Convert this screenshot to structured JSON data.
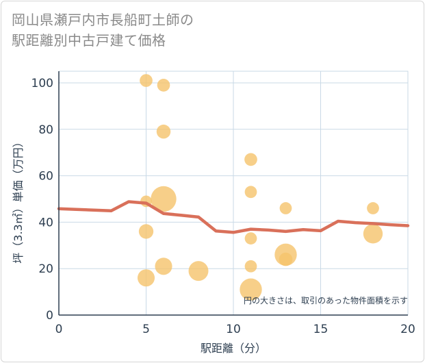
{
  "chart_data": {
    "type": "scatter",
    "title_lines": [
      "岡山県瀬戸内市長船町土師の",
      "駅距離別中古戸建て価格"
    ],
    "xlabel": "駅距離（分）",
    "ylabel": "坪（3.3㎡）単価（万円）",
    "xlim": [
      0,
      20
    ],
    "ylim": [
      0,
      105
    ],
    "x_ticks": [
      0,
      5,
      10,
      15,
      20
    ],
    "y_ticks": [
      0,
      20,
      40,
      60,
      80,
      100
    ],
    "grid": true,
    "annotation": "円の大きさは、取引のあった物件面積を示す",
    "colors": {
      "bubble": "#f5c36b",
      "line": "#d9705a",
      "grid": "#c9d9e6",
      "axis": "#2d3e50"
    },
    "points": [
      {
        "x": 5,
        "y": 101,
        "size": 1
      },
      {
        "x": 6,
        "y": 99,
        "size": 1
      },
      {
        "x": 6,
        "y": 79,
        "size": 1.2
      },
      {
        "x": 11,
        "y": 67,
        "size": 1
      },
      {
        "x": 11,
        "y": 53,
        "size": 0.9
      },
      {
        "x": 6,
        "y": 50,
        "size": 4
      },
      {
        "x": 5,
        "y": 49,
        "size": 0.8
      },
      {
        "x": 13,
        "y": 46,
        "size": 0.9
      },
      {
        "x": 18,
        "y": 46,
        "size": 0.9
      },
      {
        "x": 5,
        "y": 36,
        "size": 1.3
      },
      {
        "x": 18,
        "y": 35,
        "size": 2.3
      },
      {
        "x": 11,
        "y": 33,
        "size": 0.9
      },
      {
        "x": 13,
        "y": 26,
        "size": 3
      },
      {
        "x": 13,
        "y": 24,
        "size": 1.1
      },
      {
        "x": 6,
        "y": 21,
        "size": 1.8
      },
      {
        "x": 11,
        "y": 21,
        "size": 0.9
      },
      {
        "x": 8,
        "y": 19,
        "size": 2.4
      },
      {
        "x": 5,
        "y": 16,
        "size": 1.8
      },
      {
        "x": 11,
        "y": 11,
        "size": 3
      }
    ],
    "trend_line": {
      "x": [
        0,
        1,
        2,
        3,
        4,
        5,
        6,
        7,
        8,
        9,
        10,
        11,
        12,
        13,
        14,
        15,
        16,
        17,
        18,
        19,
        20
      ],
      "y": [
        45.8,
        45.5,
        45.2,
        44.9,
        48.8,
        48.2,
        43.7,
        43.0,
        42.2,
        36.2,
        35.6,
        37.0,
        36.6,
        36.0,
        36.8,
        36.3,
        40.4,
        39.8,
        39.4,
        38.9,
        38.5
      ]
    }
  }
}
